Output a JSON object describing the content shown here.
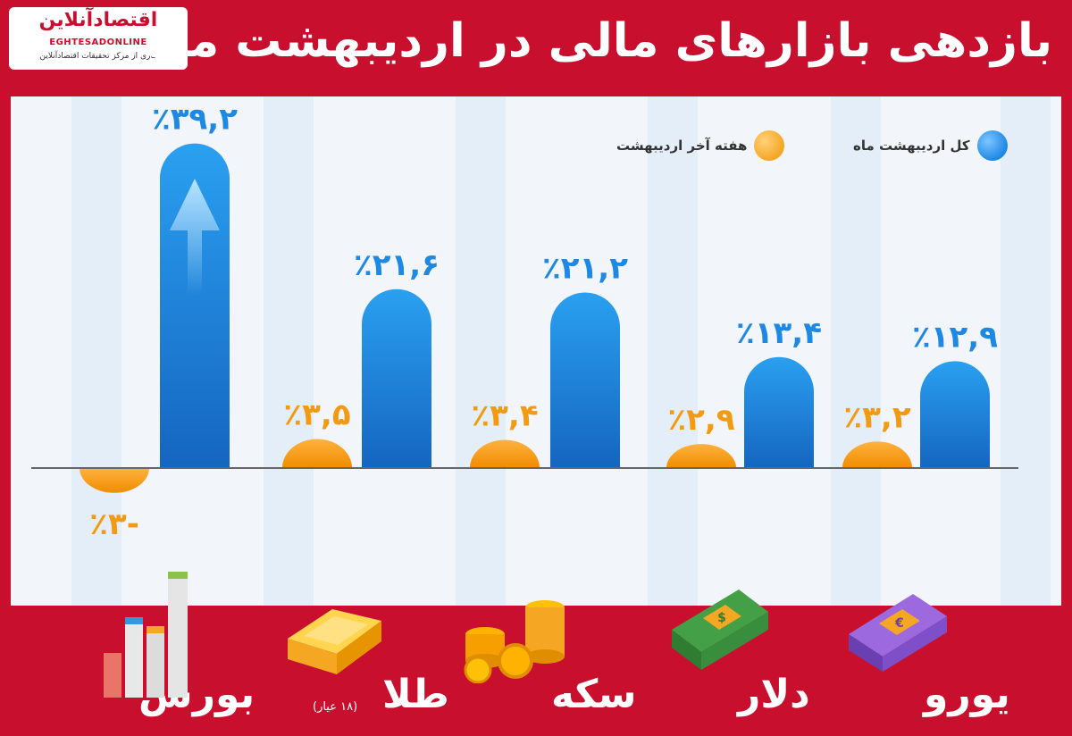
{
  "title": "بازدهی بازارهای مالی در اردیبهشت ماه",
  "logo": {
    "name": "اقتصادآنلاین",
    "latin": "EGHTESADONLINE",
    "subtitle": "کاری از مرکز تحقیقات اقتصادآنلاین"
  },
  "colors": {
    "background": "#c8102e",
    "panel": "#f2f5f9",
    "month_series": "#1e88e5",
    "week_series": "#f5a623",
    "label_month": "#1e88e5",
    "label_week": "#f29a12"
  },
  "chart_data": {
    "type": "bar",
    "categories": [
      "بورس",
      "طلا",
      "سکه",
      "دلار",
      "یورو"
    ],
    "category_notes": [
      "",
      "(۱۸ عیار)",
      "",
      "",
      ""
    ],
    "series": [
      {
        "name": "هفته آخر اردیبهشت",
        "values": [
          -3,
          3.5,
          3.4,
          2.9,
          3.2
        ],
        "labels": [
          "-٪۳",
          "٪۳,۵",
          "٪۳,۴",
          "٪۲,۹",
          "٪۳,۲"
        ]
      },
      {
        "name": "کل اردیبهشت ماه",
        "values": [
          39.2,
          21.6,
          21.2,
          13.4,
          12.9
        ],
        "labels": [
          "٪۳۹,۲",
          "٪۲۱,۶",
          "٪۲۱,۲",
          "٪۱۳,۴",
          "٪۱۲,۹"
        ]
      }
    ],
    "ylim": [
      -3,
      39.2
    ],
    "grid": false,
    "legend_position": "top-right"
  },
  "icons": [
    "bar-chart-icon",
    "gold-bar-icon",
    "coins-icon",
    "dollar-bills-icon",
    "euro-bills-icon"
  ]
}
